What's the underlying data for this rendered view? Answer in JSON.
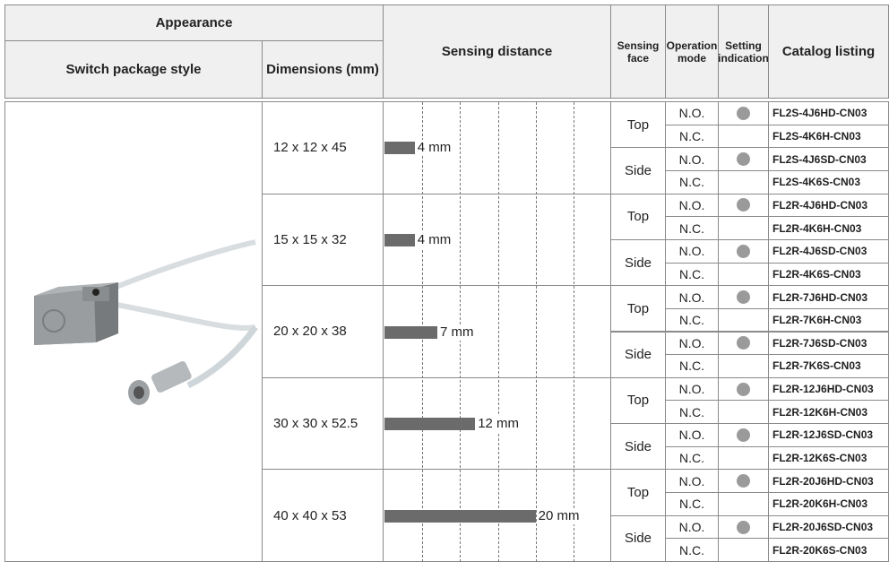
{
  "header": {
    "appearance": "Appearance",
    "package_style": "Switch package style",
    "dimensions": "Dimensions (mm)",
    "sensing_distance": "Sensing distance",
    "sensing_face": "Sensing face",
    "operation_mode": "Operation mode",
    "setting_indication": "Setting indication",
    "catalog_listing": "Catalog listing"
  },
  "sensing_scale": {
    "lim": [
      0,
      30
    ],
    "gridlines": [
      5,
      10,
      15,
      20,
      25
    ]
  },
  "groups": [
    {
      "dimensions": "12 x 12 x 45",
      "distance": {
        "value": 4,
        "label": "4 mm"
      },
      "faces": [
        {
          "face": "Top",
          "modes": [
            {
              "mode": "N.O.",
              "indicator": true,
              "catalog": "FL2S-4J6HD-CN03"
            },
            {
              "mode": "N.C.",
              "indicator": false,
              "catalog": "FL2S-4K6H-CN03"
            }
          ]
        },
        {
          "face": "Side",
          "modes": [
            {
              "mode": "N.O.",
              "indicator": true,
              "catalog": "FL2S-4J6SD-CN03"
            },
            {
              "mode": "N.C.",
              "indicator": false,
              "catalog": "FL2S-4K6S-CN03"
            }
          ]
        }
      ]
    },
    {
      "dimensions": "15 x 15 x 32",
      "distance": {
        "value": 4,
        "label": "4 mm"
      },
      "faces": [
        {
          "face": "Top",
          "modes": [
            {
              "mode": "N.O.",
              "indicator": true,
              "catalog": "FL2R-4J6HD-CN03"
            },
            {
              "mode": "N.C.",
              "indicator": false,
              "catalog": "FL2R-4K6H-CN03"
            }
          ]
        },
        {
          "face": "Side",
          "modes": [
            {
              "mode": "N.O.",
              "indicator": true,
              "catalog": "FL2R-4J6SD-CN03"
            },
            {
              "mode": "N.C.",
              "indicator": false,
              "catalog": "FL2R-4K6S-CN03"
            }
          ]
        }
      ]
    },
    {
      "dimensions": "20 x 20 x 38",
      "distance": {
        "value": 7,
        "label": "7 mm"
      },
      "faces": [
        {
          "face": "Top",
          "modes": [
            {
              "mode": "N.O.",
              "indicator": true,
              "catalog": "FL2R-7J6HD-CN03"
            },
            {
              "mode": "N.C.",
              "indicator": false,
              "catalog": "FL2R-7K6H-CN03"
            }
          ]
        },
        {
          "face": "Side",
          "modes": [
            {
              "mode": "N.O.",
              "indicator": true,
              "catalog": "FL2R-7J6SD-CN03"
            },
            {
              "mode": "N.C.",
              "indicator": false,
              "catalog": "FL2R-7K6S-CN03"
            }
          ]
        }
      ]
    },
    {
      "dimensions": "30 x 30 x 52.5",
      "distance": {
        "value": 12,
        "label": "12 mm"
      },
      "faces": [
        {
          "face": "Top",
          "modes": [
            {
              "mode": "N.O.",
              "indicator": true,
              "catalog": "FL2R-12J6HD-CN03"
            },
            {
              "mode": "N.C.",
              "indicator": false,
              "catalog": "FL2R-12K6H-CN03"
            }
          ]
        },
        {
          "face": "Side",
          "modes": [
            {
              "mode": "N.O.",
              "indicator": true,
              "catalog": "FL2R-12J6SD-CN03"
            },
            {
              "mode": "N.C.",
              "indicator": false,
              "catalog": "FL2R-12K6S-CN03"
            }
          ]
        }
      ]
    },
    {
      "dimensions": "40 x 40 x 53",
      "distance": {
        "value": 20,
        "label": "20 mm"
      },
      "faces": [
        {
          "face": "Top",
          "modes": [
            {
              "mode": "N.O.",
              "indicator": true,
              "catalog": "FL2R-20J6HD-CN03"
            },
            {
              "mode": "N.C.",
              "indicator": false,
              "catalog": "FL2R-20K6H-CN03"
            }
          ]
        },
        {
          "face": "Side",
          "modes": [
            {
              "mode": "N.O.",
              "indicator": true,
              "catalog": "FL2R-20J6SD-CN03"
            },
            {
              "mode": "N.C.",
              "indicator": false,
              "catalog": "FL2R-20K6S-CN03"
            }
          ]
        }
      ]
    }
  ]
}
